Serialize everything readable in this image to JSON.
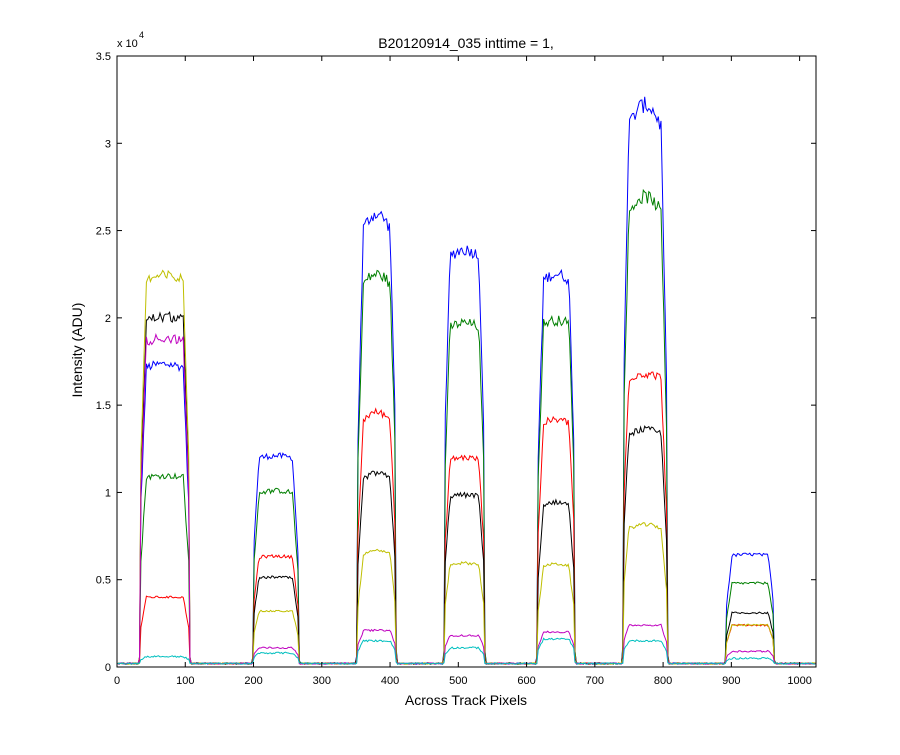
{
  "figure": {
    "background": "#ffffff"
  },
  "chart_data": {
    "type": "line",
    "title": "B20120914_035 inttime = 1,",
    "xlabel": "Across Track Pixels",
    "ylabel": "Intensity (ADU)",
    "y_exponent_label": "x 10",
    "y_exponent_power": "4",
    "xlim": [
      0,
      1024
    ],
    "ylim": [
      0,
      3.5
    ],
    "xticks": [
      0,
      100,
      200,
      300,
      400,
      500,
      600,
      700,
      800,
      900,
      1000
    ],
    "yticks": [
      0,
      0.5,
      1,
      1.5,
      2,
      2.5,
      3,
      3.5
    ],
    "ytick_labels": [
      "0",
      "0.5",
      "1",
      "1.5",
      "2",
      "2.5",
      "3",
      "3.5"
    ],
    "grid": false,
    "legend": "none",
    "background_level": 0.02,
    "peaks": [
      {
        "start": 35,
        "end": 105
      },
      {
        "start": 200,
        "end": 265
      },
      {
        "start": 353,
        "end": 408
      },
      {
        "start": 480,
        "end": 538
      },
      {
        "start": 617,
        "end": 670
      },
      {
        "start": 742,
        "end": 805
      },
      {
        "start": 893,
        "end": 962
      }
    ],
    "series": [
      {
        "color": "#0000ff",
        "levels": [
          1.7,
          1.18,
          2.5,
          2.34,
          2.2,
          3.1,
          0.62
        ],
        "humps": [
          0.03,
          0.02,
          0.15,
          0.06,
          0.06,
          0.2,
          0.01
        ]
      },
      {
        "color": "#007f00",
        "levels": [
          1.07,
          0.98,
          2.18,
          1.93,
          1.95,
          2.6,
          0.46
        ],
        "humps": [
          0.01,
          0.02,
          0.1,
          0.04,
          0.03,
          0.15,
          0.0
        ]
      },
      {
        "color": "#ff0000",
        "levels": [
          0.38,
          0.61,
          1.4,
          1.17,
          1.38,
          1.64,
          0.22
        ],
        "humps": [
          0.0,
          0.01,
          0.08,
          0.02,
          0.03,
          0.04,
          0.0
        ]
      },
      {
        "color": "#000000",
        "levels": [
          1.97,
          0.49,
          1.06,
          0.96,
          0.91,
          1.32,
          0.29
        ],
        "humps": [
          0.03,
          0.01,
          0.06,
          0.01,
          0.03,
          0.04,
          0.0
        ]
      },
      {
        "color": "#bfbf00",
        "levels": [
          2.2,
          0.3,
          0.63,
          0.57,
          0.56,
          0.78,
          0.22
        ],
        "humps": [
          0.04,
          0.0,
          0.04,
          0.01,
          0.02,
          0.03,
          0.0
        ]
      },
      {
        "color": "#bf00bf",
        "levels": [
          1.85,
          0.09,
          0.19,
          0.16,
          0.18,
          0.22,
          0.07
        ],
        "humps": [
          0.03,
          0.0,
          0.0,
          0.0,
          0.0,
          0.0,
          0.0
        ]
      },
      {
        "color": "#00bfbf",
        "levels": [
          0.04,
          0.06,
          0.13,
          0.09,
          0.14,
          0.13,
          0.03
        ],
        "humps": [
          0.0,
          0.0,
          0.0,
          0.0,
          0.0,
          0.0,
          0.0
        ]
      }
    ]
  }
}
